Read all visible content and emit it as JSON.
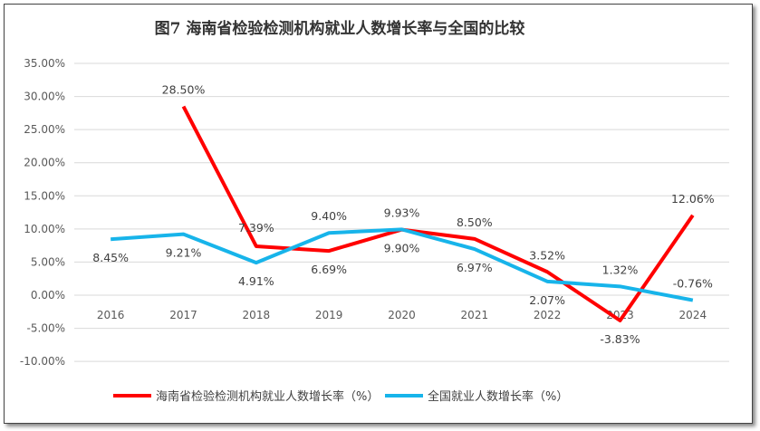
{
  "chart_data": {
    "type": "line",
    "title": "图7 海南省检验检测机构就业人数增长率与全国的比较",
    "categories": [
      "2016",
      "2017",
      "2018",
      "2019",
      "2020",
      "2021",
      "2022",
      "2023",
      "2024"
    ],
    "y_ticks": [
      "35.00%",
      "30.00%",
      "25.00%",
      "20.00%",
      "15.00%",
      "10.00%",
      "5.00%",
      "0.00%",
      "-5.00%",
      "-10.00%"
    ],
    "ylim": [
      -10,
      35
    ],
    "grid": true,
    "legend_position": "bottom",
    "series": [
      {
        "name": "海南省检验检测机构就业人数增长率（%）",
        "color": "#ff0000",
        "values": [
          null,
          28.5,
          7.39,
          6.69,
          9.9,
          8.5,
          3.52,
          -3.83,
          12.06
        ],
        "labels": [
          "",
          "28.50%",
          "7.39%",
          "6.69%",
          "9.90%",
          "8.50%",
          "3.52%",
          "-3.83%",
          "12.06%"
        ]
      },
      {
        "name": "全国就业人数增长率（%）",
        "color": "#17b4ea",
        "values": [
          8.45,
          9.21,
          4.91,
          9.4,
          9.93,
          6.97,
          2.07,
          1.32,
          -0.76
        ],
        "labels": [
          "8.45%",
          "9.21%",
          "4.91%",
          "9.40%",
          "9.93%",
          "6.97%",
          "2.07%",
          "1.32%",
          "-0.76%"
        ]
      }
    ]
  }
}
